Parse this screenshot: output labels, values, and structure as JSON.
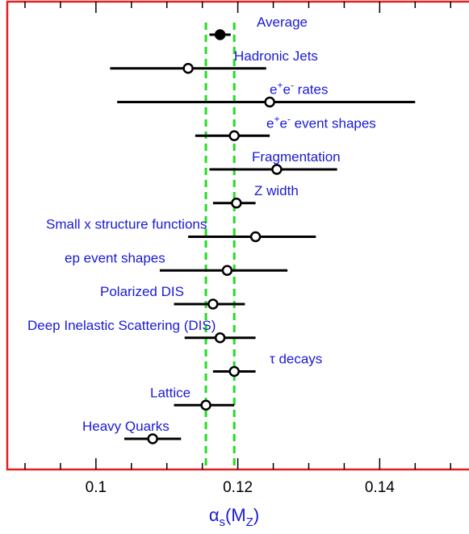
{
  "chart_data": {
    "type": "scatter",
    "orientation": "horizontal-error-bars",
    "xlabel": "αs(MZ)",
    "xlabel_main": "α",
    "xlabel_sub1": "s",
    "xlabel_paren_open": "(M",
    "xlabel_sub2": "Z",
    "xlabel_paren_close": ")",
    "xlim": [
      0.0875,
      0.1535
    ],
    "x_ticks": [
      0.1,
      0.12,
      0.14
    ],
    "x_tick_labels": [
      "0.1",
      "0.12",
      "0.14"
    ],
    "band": {
      "low": 0.1155,
      "high": 0.1195,
      "color": "#22dd22"
    },
    "frame_color": "#dd2222",
    "label_color": "#1a1ad6",
    "points": [
      {
        "label": "Average",
        "value": 0.1175,
        "low": 0.116,
        "high": 0.119,
        "filled": true
      },
      {
        "label": "Hadronic Jets",
        "value": 0.113,
        "low": 0.102,
        "high": 0.124,
        "filled": false
      },
      {
        "label": "e+e- rates",
        "value": 0.1245,
        "low": 0.103,
        "high": 0.145,
        "filled": false
      },
      {
        "label": "e+e- event shapes",
        "value": 0.1195,
        "low": 0.114,
        "high": 0.1245,
        "filled": false
      },
      {
        "label": "Fragmentation",
        "value": 0.1255,
        "low": 0.116,
        "high": 0.134,
        "filled": false
      },
      {
        "label": "Z width",
        "value": 0.1198,
        "low": 0.1165,
        "high": 0.1225,
        "filled": false
      },
      {
        "label": "Small x structure functions",
        "value": 0.1225,
        "low": 0.113,
        "high": 0.131,
        "filled": false
      },
      {
        "label": "ep event shapes",
        "value": 0.1185,
        "low": 0.109,
        "high": 0.127,
        "filled": false
      },
      {
        "label": "Polarized DIS",
        "value": 0.1165,
        "low": 0.111,
        "high": 0.121,
        "filled": false
      },
      {
        "label": "Deep Inelastic Scattering (DIS)",
        "value": 0.1175,
        "low": 0.1125,
        "high": 0.1225,
        "filled": false
      },
      {
        "label": "τ decays",
        "value": 0.1195,
        "low": 0.1165,
        "high": 0.1225,
        "filled": false
      },
      {
        "label": "Lattice",
        "value": 0.1155,
        "low": 0.111,
        "high": 0.1195,
        "filled": false
      },
      {
        "label": "Heavy Quarks",
        "value": 0.108,
        "low": 0.104,
        "high": 0.112,
        "filled": false
      }
    ]
  }
}
